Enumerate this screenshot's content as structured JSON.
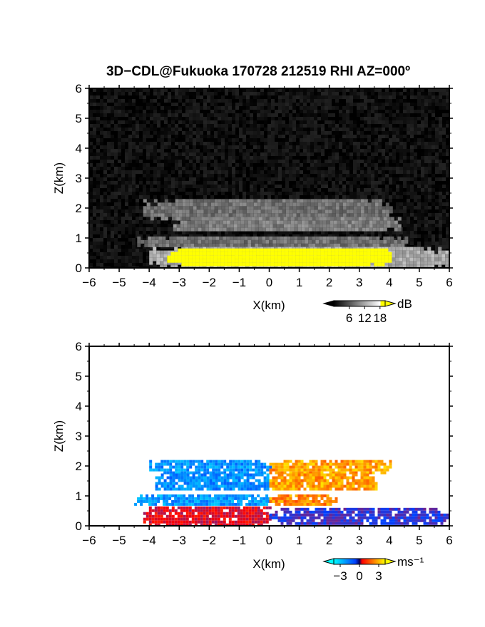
{
  "title": "3D−CDL@Fukuoka 170728 212519 RHI AZ=000º",
  "chart_data": [
    {
      "type": "heatmap",
      "name": "backscatter",
      "xlabel": "X(km)",
      "ylabel": "Z(km)",
      "xlim": [
        -6,
        6
      ],
      "ylim": [
        0,
        6
      ],
      "x_ticks": [
        "−6",
        "−5",
        "−4",
        "−3",
        "−2",
        "−1",
        "0",
        "1",
        "2",
        "3",
        "4",
        "5",
        "6"
      ],
      "y_ticks": [
        "0",
        "1",
        "2",
        "3",
        "4",
        "5",
        "6"
      ],
      "colorbar": {
        "unit": "dB",
        "tick_labels": [
          "6",
          "12",
          "18"
        ],
        "tick_values": [
          6,
          12,
          18
        ],
        "range": [
          0,
          20
        ],
        "colors": [
          "#000000",
          "#ffffff",
          "#ffff00"
        ]
      },
      "layers": [
        {
          "label": "noise",
          "z": [
            0,
            6
          ],
          "x": [
            -6,
            6
          ],
          "value": 1
        },
        {
          "label": "cloud-band-upper",
          "z": [
            1.7,
            2.3
          ],
          "x": [
            -4.2,
            4.0
          ],
          "value": 8
        },
        {
          "label": "cloud-band-mid",
          "z": [
            1.25,
            1.7
          ],
          "x": [
            -3.2,
            4.4
          ],
          "value": 9
        },
        {
          "label": "cloud-band-low",
          "z": [
            0.75,
            1.05
          ],
          "x": [
            -4.4,
            4.6
          ],
          "value": 8
        },
        {
          "label": "boundary-layer",
          "z": [
            0.05,
            0.7
          ],
          "x": [
            -4.0,
            6.0
          ],
          "value": 12
        },
        {
          "label": "strong-echo",
          "z": [
            0.1,
            0.65
          ],
          "x": [
            -3.4,
            4.0
          ],
          "value": 19
        }
      ]
    },
    {
      "type": "heatmap",
      "name": "doppler-velocity",
      "xlabel": "X(km)",
      "ylabel": "Z(km)",
      "xlim": [
        -6,
        6
      ],
      "ylim": [
        0,
        6
      ],
      "x_ticks": [
        "−6",
        "−5",
        "−4",
        "−3",
        "−2",
        "−1",
        "0",
        "1",
        "2",
        "3",
        "4",
        "5",
        "6"
      ],
      "y_ticks": [
        "0",
        "1",
        "2",
        "3",
        "4",
        "5",
        "6"
      ],
      "colorbar": {
        "unit": "ms⁻¹",
        "tick_labels": [
          "−3",
          "0",
          "3"
        ],
        "tick_values": [
          -3,
          0,
          3
        ],
        "range": [
          -4,
          4
        ],
        "colors": [
          "#00ffff",
          "#0040ff",
          "#ff0000",
          "#ffff00"
        ]
      },
      "layers": [
        {
          "label": "upper-left",
          "z": [
            1.8,
            2.2
          ],
          "x": [
            -4.0,
            0.0
          ],
          "value": -2.5
        },
        {
          "label": "upper-right",
          "z": [
            1.8,
            2.2
          ],
          "x": [
            0.0,
            4.0
          ],
          "value": 3.0
        },
        {
          "label": "mid-left",
          "z": [
            1.2,
            1.75
          ],
          "x": [
            -3.8,
            0.0
          ],
          "value": -2.4
        },
        {
          "label": "mid-right",
          "z": [
            1.2,
            1.75
          ],
          "x": [
            0.0,
            3.6
          ],
          "value": 3.0
        },
        {
          "label": "low-left",
          "z": [
            0.75,
            1.05
          ],
          "x": [
            -4.5,
            0.0
          ],
          "value": -2.6
        },
        {
          "label": "low-right",
          "z": [
            0.75,
            1.05
          ],
          "x": [
            0.0,
            2.2
          ],
          "value": 2.8
        },
        {
          "label": "boundary-left",
          "z": [
            0.05,
            0.65
          ],
          "x": [
            -4.2,
            0.0
          ],
          "value": 1.0
        },
        {
          "label": "boundary-right",
          "z": [
            0.05,
            0.6
          ],
          "x": [
            0.0,
            6.0
          ],
          "value": -0.8
        }
      ]
    }
  ]
}
